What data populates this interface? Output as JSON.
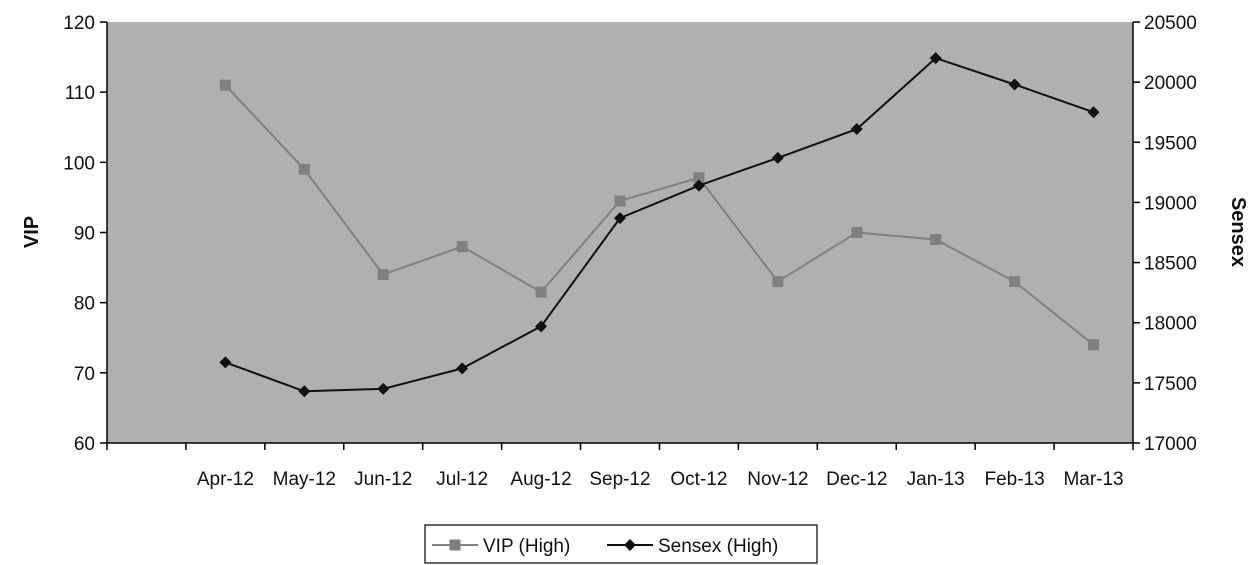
{
  "chart_data": {
    "type": "line",
    "title": "",
    "xlabel": "",
    "categories": [
      "Apr-12",
      "May-12",
      "Jun-12",
      "Jul-12",
      "Aug-12",
      "Sep-12",
      "Oct-12",
      "Nov-12",
      "Dec-12",
      "Jan-13",
      "Feb-13",
      "Mar-13"
    ],
    "y_left": {
      "label": "VIP",
      "range": [
        60,
        120
      ],
      "ticks": [
        60,
        70,
        80,
        90,
        100,
        110,
        120
      ]
    },
    "y_right": {
      "label": "Sensex",
      "range": [
        17000,
        20500
      ],
      "ticks": [
        17000,
        17500,
        18000,
        18500,
        19000,
        19500,
        20000,
        20500
      ]
    },
    "series": [
      {
        "name": "VIP (High)",
        "axis": "left",
        "marker": "square",
        "color": "#808080",
        "values": [
          111,
          99,
          84,
          88,
          81.5,
          94.5,
          97.8,
          83,
          90,
          89,
          83,
          74
        ]
      },
      {
        "name": "Sensex (High)",
        "axis": "right",
        "marker": "diamond",
        "color": "#111111",
        "values": [
          17670,
          17430,
          17450,
          17620,
          17970,
          18870,
          19140,
          19370,
          19610,
          20200,
          19980,
          19750
        ]
      }
    ],
    "grid": false,
    "plot_background": "#b0b0b0",
    "legend_position": "bottom"
  }
}
